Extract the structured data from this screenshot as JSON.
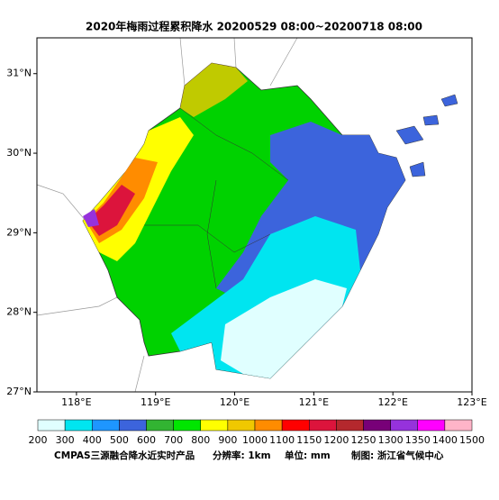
{
  "map": {
    "title": "2020年梅雨过程累积降水 20200529 08:00~20200718 08:00",
    "xlim": [
      117.5,
      123
    ],
    "ylim": [
      27,
      31.45
    ],
    "xticks": [
      {
        "value": 118,
        "label": "118°E"
      },
      {
        "value": 119,
        "label": "119°E"
      },
      {
        "value": 120,
        "label": "120°E"
      },
      {
        "value": 121,
        "label": "121°E"
      },
      {
        "value": 122,
        "label": "122°E"
      },
      {
        "value": 123,
        "label": "123°E"
      }
    ],
    "yticks": [
      {
        "value": 27,
        "label": "27°N"
      },
      {
        "value": 28,
        "label": "28°N"
      },
      {
        "value": 29,
        "label": "29°N"
      },
      {
        "value": 30,
        "label": "30°N"
      },
      {
        "value": 31,
        "label": "31°N"
      }
    ],
    "colorbar": {
      "levels": [
        200,
        300,
        400,
        500,
        600,
        700,
        800,
        900,
        1000,
        1100,
        1150,
        1200,
        1250,
        1300,
        1350,
        1400,
        1500
      ],
      "colors": [
        "#e0ffff",
        "#00e5f0",
        "#1e96ff",
        "#3c64dc",
        "#32b432",
        "#00e600",
        "#ffff00",
        "#f0c800",
        "#ff8c00",
        "#ff0000",
        "#dc143c",
        "#b4282d",
        "#780078",
        "#9632dc",
        "#ff00ff",
        "#ffb4c8"
      ]
    },
    "footer": [
      "CMPAS三源融合降水近实时产品",
      "分辨率: 1km",
      "单位: mm",
      "制图: 浙江省气候中心"
    ]
  }
}
